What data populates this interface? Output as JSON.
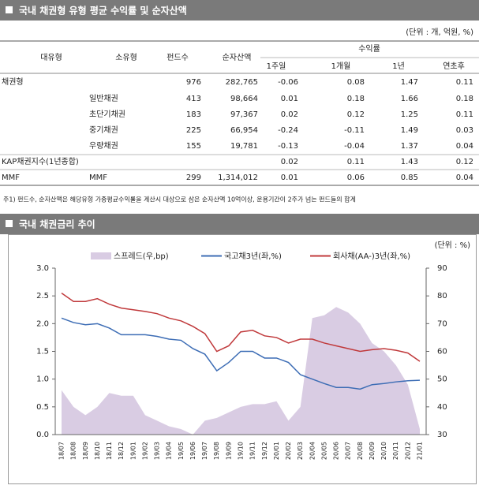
{
  "section1": {
    "title": "국내 채권형 유형 평균 수익률 및 순자산액",
    "unit": "(단위 : 개, 억원, %)"
  },
  "table": {
    "headers": [
      "대유형",
      "소유형",
      "펀드수",
      "순자산액",
      "수익률"
    ],
    "subheaders": [
      "1주일",
      "1개월",
      "1년",
      "연초후"
    ],
    "rows": [
      [
        "채권형",
        null,
        "976",
        "282,765",
        "-0.06",
        "0.08",
        "1.47",
        "0.11"
      ],
      [
        null,
        "일반채권",
        "413",
        "98,664",
        "0.01",
        "0.18",
        "1.66",
        "0.18"
      ],
      [
        null,
        "초단기채권",
        "183",
        "97,367",
        "0.02",
        "0.12",
        "1.25",
        "0.11"
      ],
      [
        null,
        "중기채권",
        "225",
        "66,954",
        "-0.24",
        "-0.11",
        "1.49",
        "0.03"
      ],
      [
        null,
        "우량채권",
        "155",
        "19,781",
        "-0.13",
        "-0.04",
        "1.37",
        "0.04"
      ],
      [
        "KAP채권지수(1년종합)",
        null,
        null,
        null,
        "0.02",
        "0.11",
        "1.43",
        "0.12"
      ],
      [
        "MMF",
        "MMF",
        "299",
        "1,314,012",
        "0.01",
        "0.06",
        "0.85",
        "0.04"
      ]
    ]
  },
  "footnote": "주1) 펀드수, 순자산액은 해당유형 가중평균수익률을 계산시 대상으로 삼은 순자산액 10억이상, 운용기간이 2주가 넘는 펀드들의 합계",
  "section2": {
    "title": "국내 채권금리 추이"
  },
  "chart_data": {
    "type": "line",
    "unit_label": "(단위 : %)",
    "categories": [
      "18/07",
      "18/08",
      "18/09",
      "18/10",
      "18/11",
      "18/12",
      "19/01",
      "19/02",
      "19/03",
      "19/04",
      "19/05",
      "19/06",
      "19/07",
      "19/08",
      "19/09",
      "19/10",
      "19/11",
      "19/12",
      "20/01",
      "20/02",
      "20/03",
      "20/04",
      "20/05",
      "20/06",
      "20/07",
      "20/08",
      "20/09",
      "20/10",
      "20/11",
      "20/12",
      "21/01"
    ],
    "series": [
      {
        "name": "스프레드(우,bp)",
        "color": "#d9cce3",
        "axis": "y2",
        "style": "area",
        "values": [
          46,
          40,
          37,
          40,
          45,
          44,
          44,
          37,
          35,
          33,
          32,
          30,
          35,
          36,
          38,
          40,
          41,
          41,
          42,
          35,
          40,
          72,
          73,
          76,
          74,
          70,
          63,
          60,
          55,
          48,
          32
        ]
      },
      {
        "name": "국고채3년(좌,%)",
        "color": "#3d6db5",
        "style": "line",
        "values": [
          2.1,
          2.02,
          1.98,
          2.0,
          1.92,
          1.8,
          1.8,
          1.8,
          1.77,
          1.72,
          1.7,
          1.55,
          1.45,
          1.15,
          1.3,
          1.5,
          1.5,
          1.38,
          1.38,
          1.3,
          1.08,
          1.0,
          0.92,
          0.85,
          0.85,
          0.82,
          0.9,
          0.92,
          0.95,
          0.97,
          0.98
        ]
      },
      {
        "name": "회사채(AA-)3년(좌,%)",
        "color": "#c0393b",
        "style": "line",
        "values": [
          2.55,
          2.4,
          2.4,
          2.45,
          2.35,
          2.28,
          2.25,
          2.22,
          2.18,
          2.1,
          2.05,
          1.95,
          1.82,
          1.5,
          1.6,
          1.85,
          1.88,
          1.78,
          1.75,
          1.65,
          1.72,
          1.72,
          1.65,
          1.6,
          1.55,
          1.5,
          1.53,
          1.55,
          1.52,
          1.47,
          1.32
        ]
      }
    ],
    "ylim": [
      0,
      3
    ],
    "yticks": [
      {
        "value": 0,
        "label": "0.0"
      },
      0.5,
      {
        "value": 1,
        "label": "1.0"
      },
      1.5,
      {
        "value": 2,
        "label": "2.0"
      },
      2.5,
      {
        "value": 3,
        "label": "3.0"
      }
    ],
    "y2lim": [
      30,
      90
    ],
    "y2ticks": [
      30,
      40,
      50,
      60,
      70,
      80,
      90
    ]
  }
}
